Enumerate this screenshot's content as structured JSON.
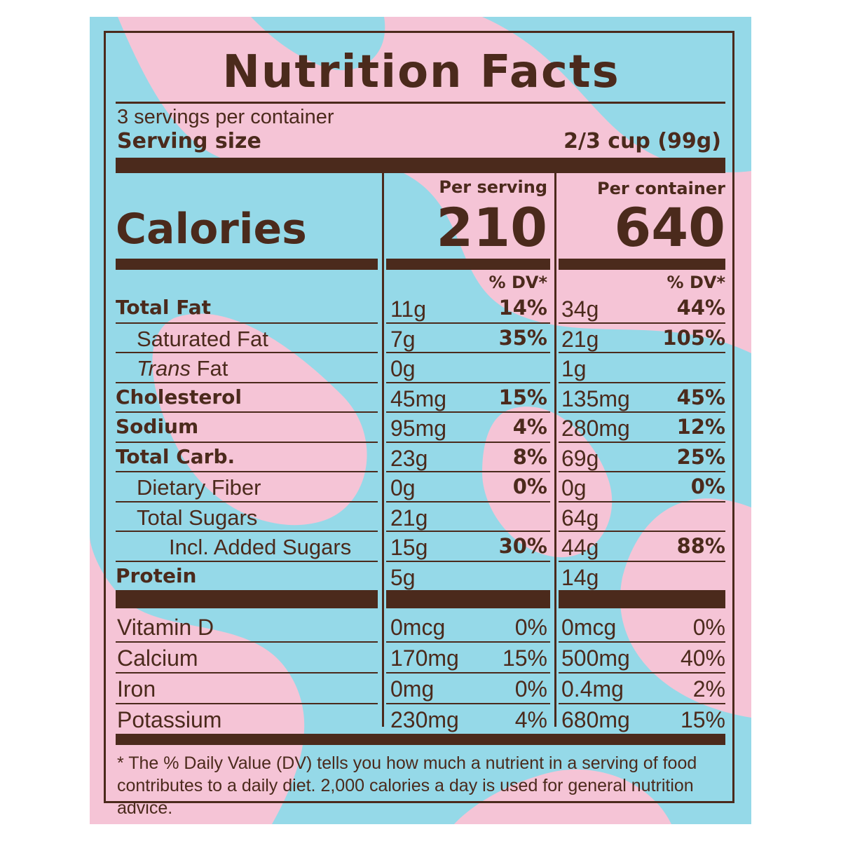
{
  "colors": {
    "pink": "#f5c4d6",
    "blue": "#95d9e8",
    "ink": "#4b2a1c"
  },
  "title": "Nutrition Facts",
  "servings_per_container": "3 servings per container",
  "serving_size_label": "Serving size",
  "serving_size_value": "2/3 cup (99g)",
  "per_serving_label": "Per serving",
  "per_container_label": "Per container",
  "calories_label": "Calories",
  "calories_per_serving": "210",
  "calories_per_container": "640",
  "dv_label": "% DV*",
  "nutrients": [
    {
      "name": "Total Fat",
      "s_amt": "11g",
      "s_dv": "14%",
      "c_amt": "34g",
      "c_dv": "44%"
    },
    {
      "name": "Saturated Fat",
      "s_amt": "7g",
      "s_dv": "35%",
      "c_amt": "21g",
      "c_dv": "105%"
    },
    {
      "name_em": "Trans",
      "name_rest": " Fat",
      "s_amt": "0g",
      "s_dv": "",
      "c_amt": "1g",
      "c_dv": ""
    },
    {
      "name": "Cholesterol",
      "s_amt": "45mg",
      "s_dv": "15%",
      "c_amt": "135mg",
      "c_dv": "45%"
    },
    {
      "name": "Sodium",
      "s_amt": "95mg",
      "s_dv": "4%",
      "c_amt": "280mg",
      "c_dv": "12%"
    },
    {
      "name": "Total Carb.",
      "s_amt": "23g",
      "s_dv": "8%",
      "c_amt": "69g",
      "c_dv": "25%"
    },
    {
      "name": "Dietary Fiber",
      "s_amt": "0g",
      "s_dv": "0%",
      "c_amt": "0g",
      "c_dv": "0%"
    },
    {
      "name": "Total Sugars",
      "s_amt": "21g",
      "s_dv": "",
      "c_amt": "64g",
      "c_dv": ""
    },
    {
      "name": "Incl. Added Sugars",
      "s_amt": "15g",
      "s_dv": "30%",
      "c_amt": "44g",
      "c_dv": "88%"
    },
    {
      "name": "Protein",
      "s_amt": "5g",
      "s_dv": "",
      "c_amt": "14g",
      "c_dv": ""
    }
  ],
  "vitamins": [
    {
      "name": "Vitamin D",
      "s_amt": "0mcg",
      "s_dv": "0%",
      "c_amt": "0mcg",
      "c_dv": "0%"
    },
    {
      "name": "Calcium",
      "s_amt": "170mg",
      "s_dv": "15%",
      "c_amt": "500mg",
      "c_dv": "40%"
    },
    {
      "name": "Iron",
      "s_amt": "0mg",
      "s_dv": "0%",
      "c_amt": "0.4mg",
      "c_dv": "2%"
    },
    {
      "name": "Potassium",
      "s_amt": "230mg",
      "s_dv": "4%",
      "c_amt": "680mg",
      "c_dv": "15%"
    }
  ],
  "footnote": "* The % Daily Value (DV) tells you how much a nutrient in a serving of food contributes to a daily diet. 2,000 calories a day is used for general nutrition advice."
}
